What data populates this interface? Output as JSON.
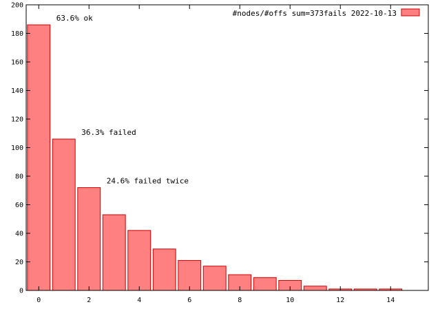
{
  "chart_data": {
    "type": "bar",
    "x": [
      0,
      1,
      2,
      3,
      4,
      5,
      6,
      7,
      8,
      9,
      10,
      11,
      12,
      13,
      14
    ],
    "values": [
      186,
      106,
      72,
      53,
      42,
      29,
      21,
      17,
      11,
      9,
      7,
      3,
      1,
      1,
      1
    ],
    "xlim": [
      -0.5,
      15.5
    ],
    "ylim": [
      0,
      200
    ],
    "xticks": [
      "0",
      "2",
      "4",
      "6",
      "8",
      "10",
      "12",
      "14"
    ],
    "yticks": [
      "0",
      "20",
      "40",
      "60",
      "80",
      "100",
      "120",
      "140",
      "160",
      "180",
      "200"
    ],
    "legend": {
      "label": "#nodes/#offs sum=373fails 2022-10-13",
      "placement": "top-right"
    },
    "annotations": [
      {
        "text": "63.6% ok",
        "x": 0.7,
        "y": 189
      },
      {
        "text": "36.3% failed",
        "x": 1.7,
        "y": 109
      },
      {
        "text": "24.6% failed twice",
        "x": 2.7,
        "y": 75
      }
    ],
    "colors": {
      "bar_fill": "#ff8080",
      "bar_stroke": "#cc0000",
      "axis": "#000000"
    },
    "grid": false
  }
}
